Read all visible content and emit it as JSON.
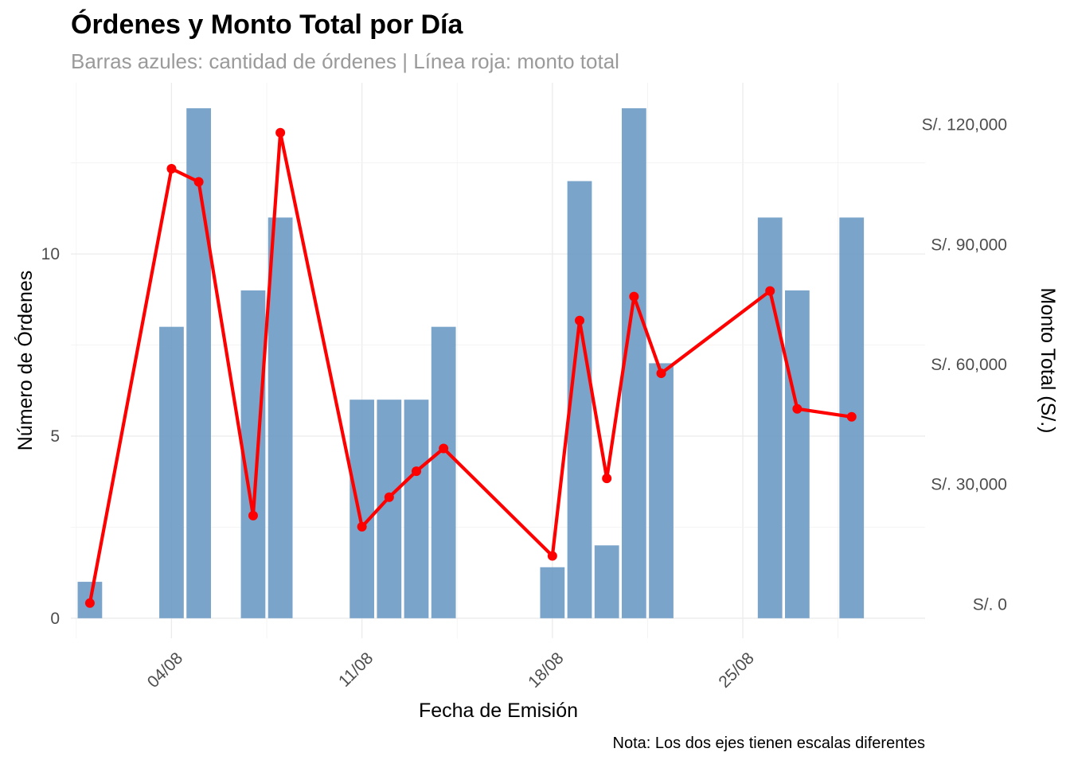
{
  "chart_data": {
    "type": "bar+line",
    "title": "Órdenes y Monto Total por Día",
    "subtitle": "Barras azules: cantidad de órdenes | Línea roja: monto total",
    "caption": "Nota: Los dos ejes tienen escalas diferentes",
    "xlabel": "Fecha de Emisión",
    "ylabel_left": "Número de Órdenes",
    "ylabel_right": "Monto Total (S/.)",
    "x_ticks": [
      {
        "day": 4,
        "label": "04/08"
      },
      {
        "day": 11,
        "label": "11/08"
      },
      {
        "day": 18,
        "label": "18/08"
      },
      {
        "day": 25,
        "label": "25/08"
      }
    ],
    "y_left_ticks": [
      0,
      5,
      10
    ],
    "y_right_ticks": [
      {
        "value": 0,
        "label": "S/. 0"
      },
      {
        "value": 30000,
        "label": "S/. 30,000"
      },
      {
        "value": 60000,
        "label": "S/. 60,000"
      },
      {
        "value": 90000,
        "label": "S/. 90,000"
      },
      {
        "value": 120000,
        "label": "S/. 120,000"
      }
    ],
    "x_range": [
      0.3,
      31.7
    ],
    "ylim_left": [
      -0.55,
      14.7
    ],
    "ylim_right": [
      -8500,
      130500
    ],
    "grid": true,
    "colors": {
      "bars": "#6b9ac4",
      "line": "#ff0000"
    },
    "series": [
      {
        "name": "cantidad de órdenes",
        "type": "bar",
        "x": [
          1,
          4,
          5,
          7,
          8,
          11,
          12,
          13,
          14,
          18,
          19,
          20,
          21,
          22,
          26,
          27,
          29
        ],
        "values": [
          1,
          8,
          14,
          9,
          11,
          6,
          6,
          6,
          8,
          1.4,
          12,
          2,
          14,
          7,
          11,
          9,
          11
        ]
      },
      {
        "name": "monto total",
        "type": "line",
        "x": [
          1,
          4,
          5,
          7,
          8,
          11,
          12,
          13,
          14,
          18,
          19,
          20,
          21,
          22,
          26,
          27,
          29
        ],
        "values": [
          300,
          109000,
          105700,
          22200,
          118000,
          19400,
          26800,
          33300,
          39000,
          12100,
          71000,
          31500,
          77000,
          57800,
          78400,
          48900,
          46900
        ]
      }
    ]
  }
}
